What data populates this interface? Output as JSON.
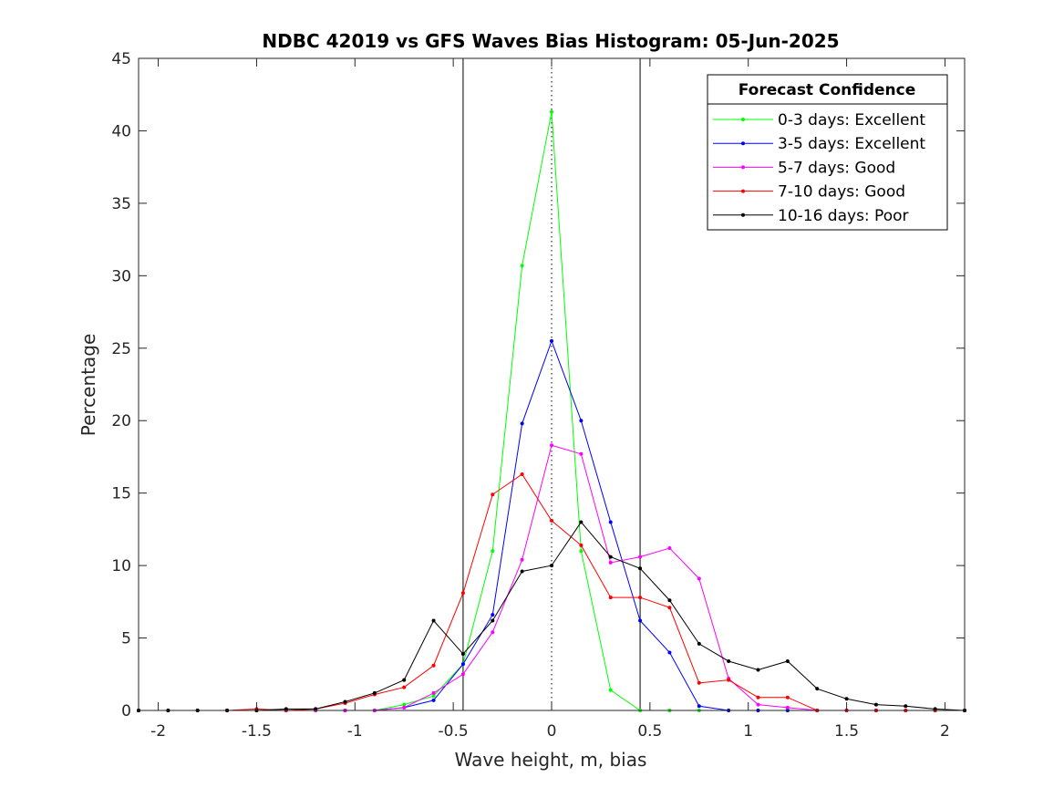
{
  "chart_data": {
    "type": "line",
    "title": "NDBC 42019 vs GFS Waves Bias Histogram: 05-Jun-2025",
    "xlabel": "Wave height, m, bias",
    "ylabel": "Percentage",
    "xlim": [
      -2.1,
      2.1
    ],
    "ylim": [
      0,
      45
    ],
    "xticks": [
      -2,
      -1.5,
      -1,
      -0.5,
      0,
      0.5,
      1,
      1.5,
      2
    ],
    "xtick_labels": [
      "-2",
      "-1.5",
      "-1",
      "-0.5",
      "0",
      "0.5",
      "1",
      "1.5",
      "2"
    ],
    "yticks": [
      0,
      5,
      10,
      15,
      20,
      25,
      30,
      35,
      40,
      45
    ],
    "ytick_labels": [
      "0",
      "5",
      "10",
      "15",
      "20",
      "25",
      "30",
      "35",
      "40",
      "45"
    ],
    "grid": false,
    "legend_title": "Forecast Confidence",
    "legend_position": "top-right",
    "vertical_lines": [
      {
        "x": -0.45,
        "style": "solid",
        "color": "#000000"
      },
      {
        "x": 0,
        "style": "dotted",
        "color": "#000000"
      },
      {
        "x": 0.45,
        "style": "solid",
        "color": "#000000"
      }
    ],
    "x": [
      -2.1,
      -1.95,
      -1.8,
      -1.65,
      -1.5,
      -1.35,
      -1.2,
      -1.05,
      -0.9,
      -0.75,
      -0.6,
      -0.45,
      -0.3,
      -0.15,
      0,
      0.15,
      0.3,
      0.45,
      0.6,
      0.75,
      0.9,
      1.05,
      1.2,
      1.35,
      1.5,
      1.65,
      1.8,
      1.95,
      2.1
    ],
    "series": [
      {
        "name": "0-3 days: Excellent",
        "color": "#00ff00",
        "values": [
          0,
          0,
          0,
          0,
          0,
          0,
          0,
          0,
          0,
          0.4,
          1.0,
          3.2,
          11.0,
          30.7,
          41.3,
          11.0,
          1.4,
          0,
          0,
          0,
          0,
          0,
          0,
          0,
          0,
          0,
          0,
          0,
          0
        ]
      },
      {
        "name": "3-5 days: Excellent",
        "color": "#0000ff",
        "values": [
          0,
          0,
          0,
          0,
          0,
          0,
          0,
          0,
          0,
          0.2,
          0.7,
          3.2,
          6.6,
          19.8,
          25.5,
          20.0,
          13.0,
          6.2,
          4.0,
          0.3,
          0,
          0,
          0,
          0,
          0,
          0,
          0,
          0,
          0
        ]
      },
      {
        "name": "5-7 days: Good",
        "color": "#ff00ff",
        "values": [
          0,
          0,
          0,
          0,
          0,
          0,
          0,
          0,
          0,
          0.2,
          1.2,
          2.5,
          5.4,
          10.4,
          18.3,
          17.7,
          10.2,
          10.6,
          11.2,
          9.1,
          2.2,
          0.4,
          0.2,
          0,
          0,
          0,
          0,
          0,
          0
        ]
      },
      {
        "name": "7-10 days: Good",
        "color": "#ff0000",
        "values": [
          0,
          0,
          0,
          0,
          0.1,
          0,
          0.1,
          0.5,
          1.1,
          1.6,
          3.1,
          8.1,
          14.9,
          16.3,
          13.1,
          11.4,
          7.8,
          7.8,
          7.1,
          1.9,
          2.1,
          0.9,
          0.9,
          0,
          0,
          0,
          0,
          0,
          0
        ]
      },
      {
        "name": "10-16 days: Poor",
        "color": "#000000",
        "values": [
          0,
          0,
          0,
          0,
          0,
          0.1,
          0.1,
          0.6,
          1.2,
          2.1,
          6.2,
          3.9,
          6.2,
          9.6,
          10.0,
          13.0,
          10.6,
          9.8,
          7.6,
          4.6,
          3.4,
          2.8,
          3.4,
          1.5,
          0.8,
          0.4,
          0.3,
          0.1,
          0
        ]
      }
    ]
  }
}
